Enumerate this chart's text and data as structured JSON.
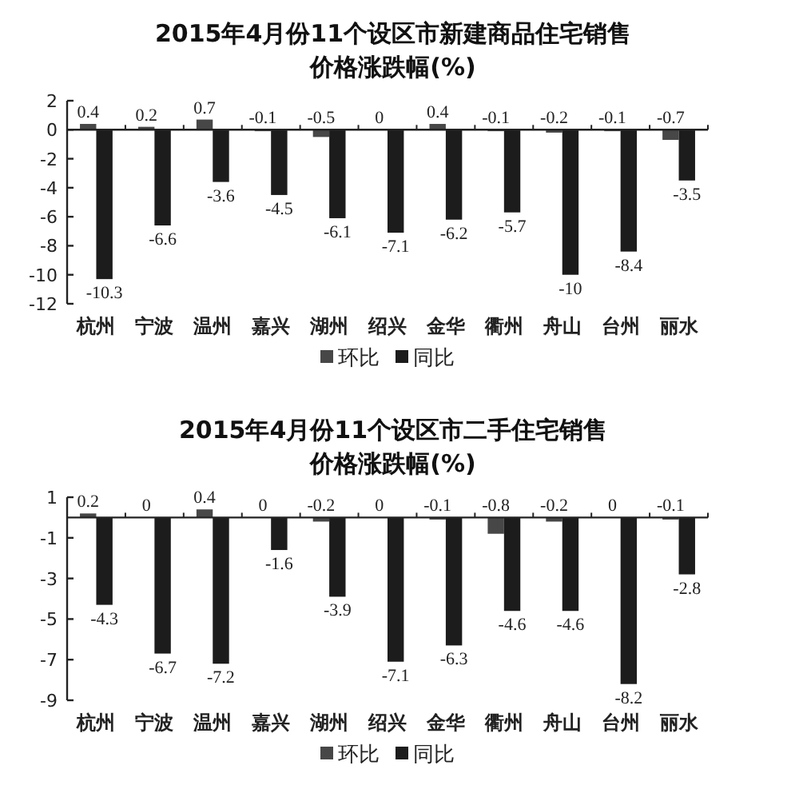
{
  "chart_data": [
    {
      "type": "bar",
      "title": "2015年4月份11个设区市新建商品住宅销售",
      "subtitle": "价格涨跌幅(%)",
      "categories": [
        "杭州",
        "宁波",
        "温州",
        "嘉兴",
        "湖州",
        "绍兴",
        "金华",
        "衢州",
        "舟山",
        "台州",
        "丽水"
      ],
      "series": [
        {
          "name": "环比",
          "color": "#474747",
          "values": [
            0.4,
            0.2,
            0.7,
            -0.1,
            -0.5,
            0,
            0.4,
            -0.1,
            -0.2,
            -0.1,
            -0.7
          ]
        },
        {
          "name": "同比",
          "color": "#1c1c1c",
          "values": [
            -10.3,
            -6.6,
            -3.6,
            -4.5,
            -6.1,
            -7.1,
            -6.2,
            -5.7,
            -10,
            -8.4,
            -3.5
          ]
        }
      ],
      "ylim": [
        -12,
        2
      ],
      "yticks": [
        2,
        0,
        -2,
        -4,
        -6,
        -8,
        -10,
        -12
      ],
      "data_labels": true,
      "legend": "bottom"
    },
    {
      "type": "bar",
      "title": "2015年4月份11个设区市二手住宅销售",
      "subtitle": "价格涨跌幅(%)",
      "categories": [
        "杭州",
        "宁波",
        "温州",
        "嘉兴",
        "湖州",
        "绍兴",
        "金华",
        "衢州",
        "舟山",
        "台州",
        "丽水"
      ],
      "series": [
        {
          "name": "环比",
          "color": "#474747",
          "values": [
            0.2,
            0,
            0.4,
            0,
            -0.2,
            0,
            -0.1,
            -0.8,
            -0.2,
            0,
            -0.1
          ]
        },
        {
          "name": "同比",
          "color": "#1c1c1c",
          "values": [
            -4.3,
            -6.7,
            -7.2,
            -1.6,
            -3.9,
            -7.1,
            -6.3,
            -4.6,
            -4.6,
            -8.2,
            -2.8
          ]
        }
      ],
      "ylim": [
        -9,
        1
      ],
      "yticks": [
        1,
        -1,
        -3,
        -5,
        -7,
        -9
      ],
      "data_labels": true,
      "legend": "bottom"
    }
  ]
}
